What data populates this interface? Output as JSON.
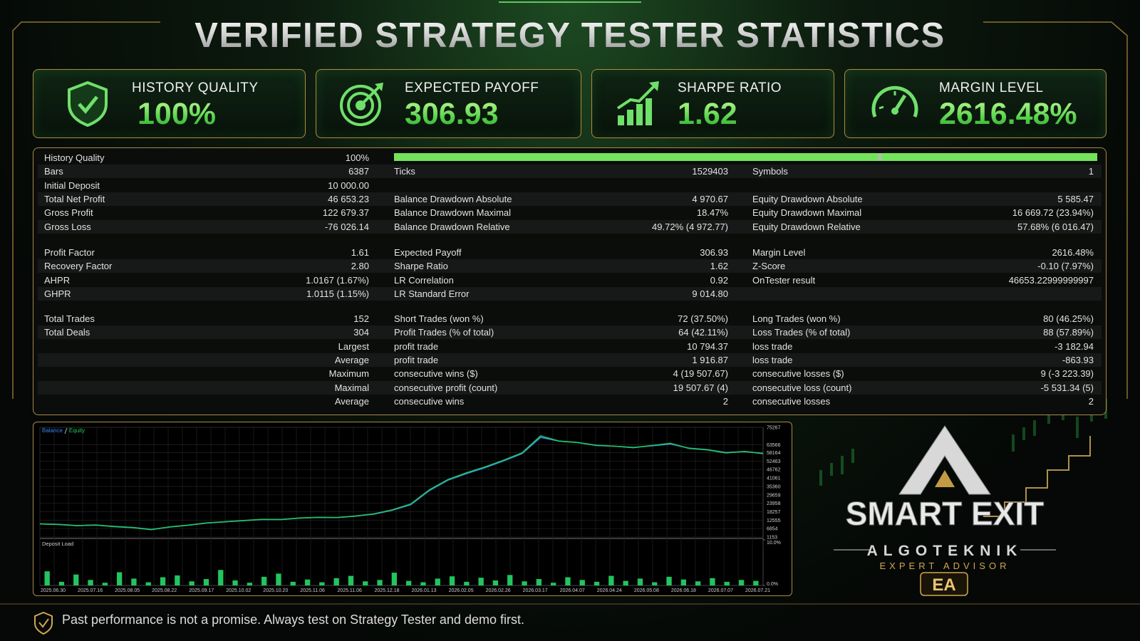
{
  "header": {
    "title": "VERIFIED STRATEGY TESTER STATISTICS"
  },
  "cards": [
    {
      "label": "HISTORY QUALITY",
      "value": "100%"
    },
    {
      "label": "EXPECTED PAYOFF",
      "value": "306.93"
    },
    {
      "label": "SHARPE RATIO",
      "value": "1.62"
    },
    {
      "label": "MARGIN LEVEL",
      "value": "2616.48%"
    }
  ],
  "stats": {
    "sections": [
      [
        {
          "l1": "History Quality",
          "v1": "100%"
        },
        {
          "l1": "Bars",
          "v1": "6387",
          "l2": "Ticks",
          "v2": "1529403",
          "l3": "Symbols",
          "v3": "1"
        },
        {
          "l1": "Initial Deposit",
          "v1": "10 000.00"
        },
        {
          "l1": "Total Net Profit",
          "v1": "46 653.23",
          "l2": "Balance Drawdown Absolute",
          "v2": "4 970.67",
          "l3": "Equity Drawdown Absolute",
          "v3": "5 585.47"
        },
        {
          "l1": "Gross Profit",
          "v1": "122 679.37",
          "l2": "Balance Drawdown Maximal",
          "v2": "18.47%",
          "l3": "Equity Drawdown Maximal",
          "v3": "16 669.72 (23.94%)"
        },
        {
          "l1": "Gross Loss",
          "v1": "-76 026.14",
          "l2": "Balance Drawdown Relative",
          "v2": "49.72% (4 972.77)",
          "l3": "Equity Drawdown Relative",
          "v3": "57.68% (6 016.47)"
        }
      ],
      [
        {
          "l1": "Profit Factor",
          "v1": "1.61",
          "l2": "Expected Payoff",
          "v2": "306.93",
          "l3": "Margin Level",
          "v3": "2616.48%"
        },
        {
          "l1": "Recovery Factor",
          "v1": "2.80",
          "l2": "Sharpe Ratio",
          "v2": "1.62",
          "l3": "Z-Score",
          "v3": "-0.10 (7.97%)"
        },
        {
          "l1": "AHPR",
          "v1": "1.0167 (1.67%)",
          "l2": "LR Correlation",
          "v2": "0.92",
          "l3": "OnTester result",
          "v3": "46653.22999999997"
        },
        {
          "l1": "GHPR",
          "v1": "1.0115 (1.15%)",
          "l2": "LR Standard Error",
          "v2": "9 014.80"
        }
      ],
      [
        {
          "l1": "Total Trades",
          "v1": "152",
          "l2": "Short Trades (won %)",
          "v2": "72 (37.50%)",
          "l3": "Long Trades (won %)",
          "v3": "80 (46.25%)"
        },
        {
          "l1": "Total Deals",
          "v1": "304",
          "l2": "Profit Trades (% of total)",
          "v2": "64 (42.11%)",
          "l3": "Loss Trades (% of total)",
          "v3": "88 (57.89%)"
        },
        {
          "v1": "Largest",
          "l2": "profit trade",
          "v2": "10 794.37",
          "l3": "loss trade",
          "v3": "-3 182.94"
        },
        {
          "v1": "Average",
          "l2": "profit trade",
          "v2": "1 916.87",
          "l3": "loss trade",
          "v3": "-863.93"
        },
        {
          "v1": "Maximum",
          "l2": "consecutive wins ($)",
          "v2": "4 (19 507.67)",
          "l3": "consecutive losses ($)",
          "v3": "9 (-3 223.39)"
        },
        {
          "v1": "Maximal",
          "l2": "consecutive profit (count)",
          "v2": "19 507.67 (4)",
          "l3": "consecutive loss (count)",
          "v3": "-5 531.34 (5)"
        },
        {
          "v1": "Average",
          "l2": "consecutive wins",
          "v2": "2",
          "l3": "consecutive losses",
          "v3": "2"
        }
      ]
    ]
  },
  "chart_data": [
    {
      "type": "line",
      "categories": [
        "2025.06.30",
        null,
        "2025.07.16",
        null,
        "2025.08.05",
        null,
        "2025.08.22",
        null,
        "2025.09.17",
        null,
        "2025.10.02",
        null,
        "2025.10.20",
        null,
        "2025.11.06",
        null,
        "2025.11.06",
        null,
        "2025.12.18",
        null,
        "2026.01.13",
        null,
        "2026.02.05",
        null,
        "2026.02.26",
        null,
        "2026.03.17",
        null,
        "2026.04.07",
        null,
        "2026.04.24",
        null,
        "2026.05.08",
        null,
        "2026.06.18",
        null,
        "2026.07.07",
        null,
        "2026.07.21",
        null
      ],
      "series": [
        {
          "name": "Balance",
          "color": "#3b82f6",
          "values": [
            10000,
            9700,
            8900,
            9200,
            8300,
            7600,
            6300,
            7900,
            9100,
            10600,
            11400,
            12200,
            13000,
            13000,
            13900,
            14400,
            14300,
            15200,
            16600,
            19200,
            23000,
            32500,
            39500,
            44000,
            48000,
            52500,
            57500,
            68500,
            66000,
            65000,
            63200,
            62500,
            61700,
            62800,
            64000,
            61200,
            60200,
            58300,
            58800,
            57800
          ]
        },
        {
          "name": "Equity",
          "color": "#22c55e",
          "values": [
            10000,
            9600,
            8800,
            9300,
            8200,
            7500,
            6100,
            8000,
            9200,
            10700,
            11500,
            12300,
            13100,
            13000,
            14000,
            14500,
            14300,
            15300,
            16800,
            19500,
            23500,
            33000,
            40000,
            44500,
            48500,
            53000,
            58000,
            69500,
            66000,
            65000,
            63000,
            62500,
            61500,
            63000,
            64500,
            61000,
            60000,
            58000,
            59000,
            57500
          ]
        }
      ],
      "ylim": [
        1153,
        75267
      ],
      "yticks": [
        75267,
        63566,
        58164,
        52463,
        46762,
        41061,
        35360,
        29659,
        23958,
        18257,
        12555,
        6854,
        1153
      ],
      "grid": true
    },
    {
      "type": "bar",
      "title": "Deposit Load",
      "categories": [
        null,
        null,
        null,
        null,
        null,
        null,
        null,
        null,
        null,
        null,
        null,
        null,
        null,
        null,
        null,
        null,
        null,
        null,
        null,
        null,
        null,
        null,
        null,
        null,
        null,
        null,
        null,
        null,
        null,
        null,
        null,
        null,
        null,
        null,
        null,
        null,
        null,
        null,
        null,
        null,
        null,
        null,
        null,
        null,
        null,
        null,
        null,
        null,
        null,
        null
      ],
      "values": [
        3.1,
        0.8,
        2.4,
        1.2,
        0.6,
        2.9,
        1.5,
        0.7,
        1.8,
        2.2,
        0.9,
        1.4,
        3.4,
        1.1,
        0.6,
        1.9,
        2.6,
        0.8,
        1.3,
        0.7,
        1.6,
        2.1,
        0.9,
        1.2,
        2.8,
        1.0,
        0.7,
        1.5,
        2.0,
        0.8,
        1.7,
        1.1,
        2.3,
        0.9,
        1.4,
        0.6,
        1.8,
        1.2,
        0.8,
        2.1,
        1.0,
        1.5,
        0.7,
        1.9,
        1.3,
        0.9,
        1.6,
        0.8,
        1.2,
        1.0
      ],
      "color": "#22c55e",
      "ylim": [
        0,
        10
      ],
      "yticks": [
        {
          "value": 10,
          "label": "10.0%"
        },
        {
          "value": 0,
          "label": "0.0%"
        }
      ]
    }
  ],
  "brand": {
    "name": "SMART EXIT",
    "company": "ALGOTEKNIK",
    "tagline": "EXPERT ADVISOR",
    "badge": "EA"
  },
  "footer": {
    "text": "Past performance is not a promise. Always test on Strategy Tester and demo first."
  }
}
